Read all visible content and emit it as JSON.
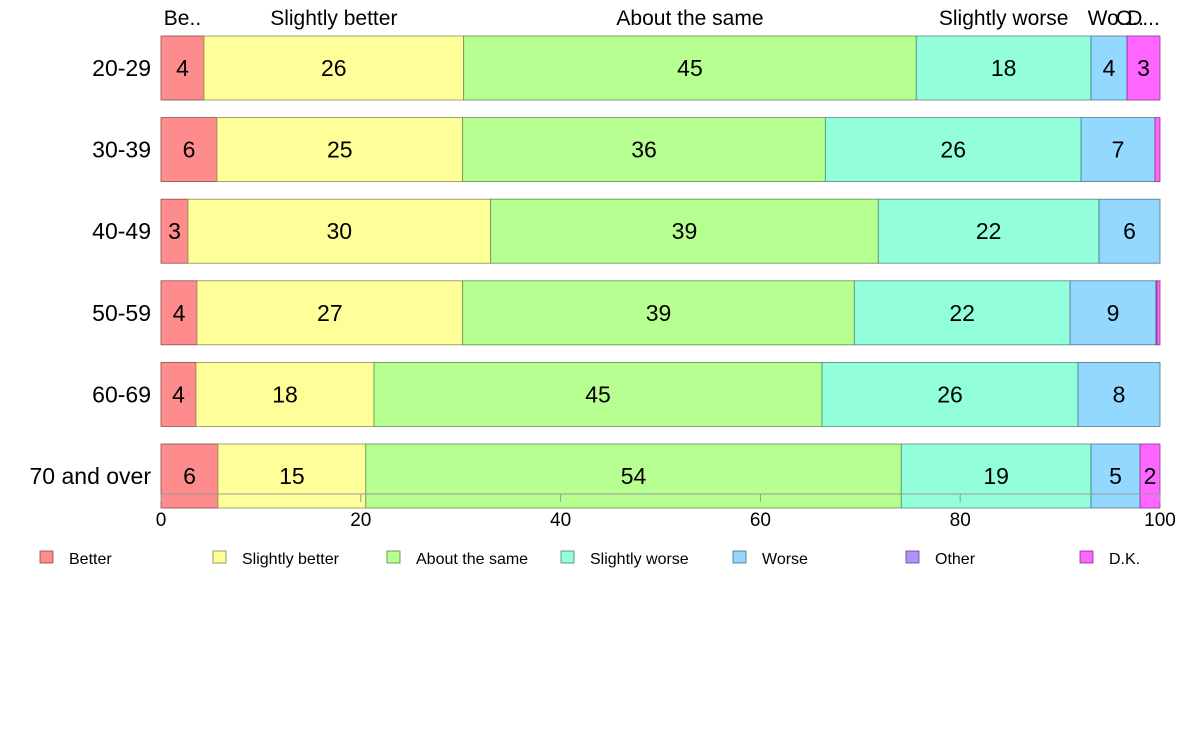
{
  "chart_data": {
    "type": "bar",
    "orientation": "horizontal",
    "stacked": true,
    "title": "",
    "xlabel": "",
    "ylabel": "",
    "xlim": [
      0,
      100
    ],
    "x_ticks": [
      0,
      20,
      40,
      60,
      80,
      100
    ],
    "grid": false,
    "legend_position": "bottom",
    "categories": [
      "20-29",
      "30-39",
      "40-49",
      "50-59",
      "60-69",
      "70 and over"
    ],
    "series": [
      {
        "name": "Better",
        "color": "#ff8c8c",
        "values": [
          4.3,
          5.6,
          2.7,
          3.6,
          3.5,
          5.7
        ],
        "labels": [
          "4",
          "6",
          "3",
          "4",
          "4",
          "6"
        ]
      },
      {
        "name": "Slightly better",
        "color": "#ffff99",
        "values": [
          26.0,
          24.6,
          30.3,
          26.6,
          17.8,
          14.8
        ],
        "labels": [
          "26",
          "25",
          "30",
          "27",
          "18",
          "15"
        ]
      },
      {
        "name": "About the same",
        "color": "#b8ff92",
        "values": [
          45.3,
          36.3,
          38.8,
          39.2,
          44.8,
          53.6
        ],
        "labels": [
          "45",
          "36",
          "39",
          "39",
          "45",
          "54"
        ]
      },
      {
        "name": "Slightly worse",
        "color": "#92ffda",
        "values": [
          17.5,
          25.6,
          22.1,
          21.6,
          25.6,
          19.0
        ],
        "labels": [
          "18",
          "26",
          "22",
          "22",
          "26",
          "19"
        ]
      },
      {
        "name": "Worse",
        "color": "#92d8ff",
        "values": [
          3.6,
          7.4,
          6.1,
          8.6,
          8.2,
          4.9
        ],
        "labels": [
          "4",
          "7",
          "6",
          "9",
          "8",
          "5"
        ]
      },
      {
        "name": "Other",
        "color": "#b092ff",
        "values": [
          0,
          0,
          0,
          0.1,
          0,
          0
        ],
        "labels": [
          "",
          "",
          "",
          "",
          "",
          ""
        ]
      },
      {
        "name": "D.K.",
        "color": "#ff66ff",
        "values": [
          3.3,
          0.5,
          0,
          0.3,
          0,
          2.0
        ],
        "labels": [
          "3",
          "",
          "",
          "",
          "",
          "2"
        ]
      }
    ],
    "top_labels": [
      "Be..",
      "Slightly better",
      "About the same",
      "Slightly worse",
      "Wo..",
      "O..",
      "D..."
    ]
  }
}
